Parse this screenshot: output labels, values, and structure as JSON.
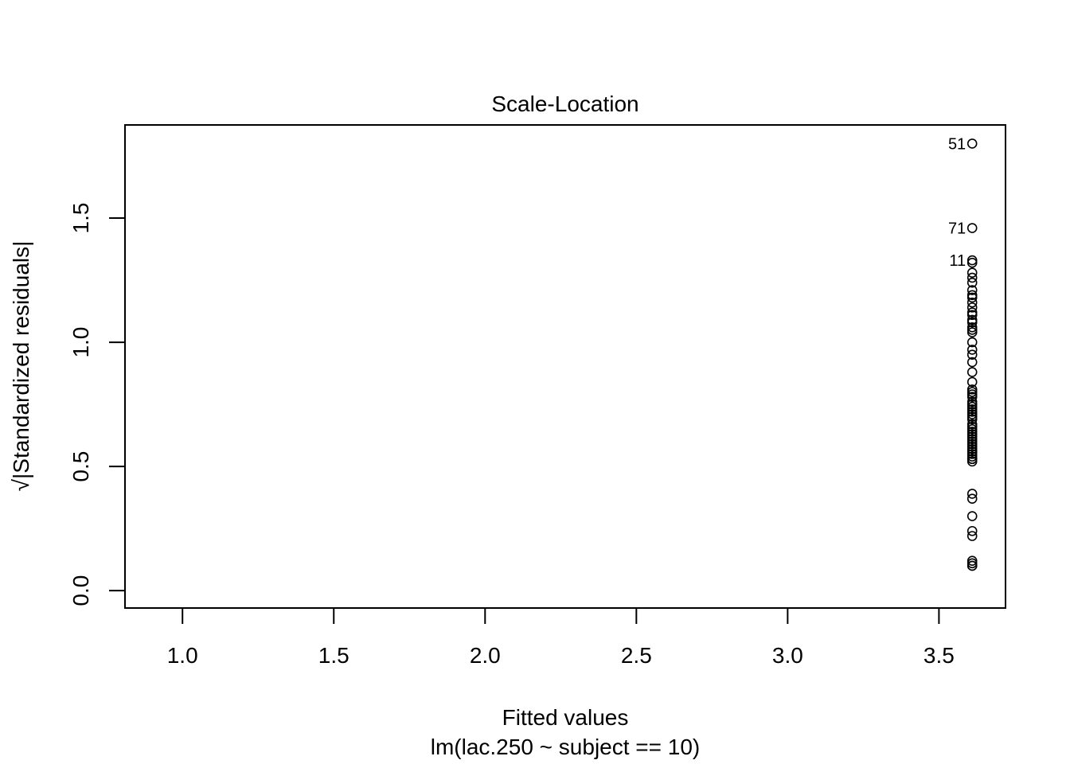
{
  "chart_data": {
    "type": "scatter",
    "title": "Scale-Location",
    "xlabel": "Fitted values",
    "subtitle": "lm(lac.250 ~ subject == 10)",
    "ylabel_sqrt_symbol": "√",
    "ylabel": "|Standardized residuals|",
    "xlim": [
      0.81,
      3.72
    ],
    "ylim": [
      -0.07,
      1.875
    ],
    "x_ticks": [
      1.0,
      1.5,
      2.0,
      2.5,
      3.0,
      3.5
    ],
    "x_tick_labels": [
      "1.0",
      "1.5",
      "2.0",
      "2.5",
      "3.0",
      "3.5"
    ],
    "y_ticks": [
      0.0,
      0.5,
      1.0,
      1.5
    ],
    "y_tick_labels": [
      "0.0",
      "0.5",
      "1.0",
      "1.5"
    ],
    "grid": false,
    "marker": "open-circle",
    "point_color": "#000000",
    "points": {
      "x": [
        3.61,
        3.61,
        3.61,
        3.61,
        3.61,
        3.61,
        3.61,
        3.61,
        3.61,
        3.61,
        3.61,
        3.61,
        3.61,
        3.61,
        3.61,
        3.61,
        3.61,
        3.61,
        3.61,
        3.61,
        3.61,
        3.61,
        3.61,
        3.61,
        3.61,
        3.61,
        3.61,
        3.61,
        3.61,
        3.61,
        3.61,
        3.61,
        3.61,
        3.61,
        3.61,
        3.61,
        3.61,
        3.61,
        3.61,
        3.61,
        3.61,
        3.61,
        3.61,
        3.61,
        3.61,
        3.61,
        3.61,
        3.61,
        3.61,
        3.61,
        3.61,
        3.61,
        3.61,
        3.61,
        3.61,
        3.61,
        3.61,
        3.61,
        3.61,
        3.61,
        3.61,
        3.61,
        3.61,
        3.61
      ],
      "y": [
        1.8,
        1.46,
        1.33,
        1.32,
        1.28,
        1.26,
        1.24,
        1.21,
        1.19,
        1.18,
        1.16,
        1.14,
        1.12,
        1.11,
        1.09,
        1.08,
        1.06,
        1.05,
        1.04,
        1.0,
        0.97,
        0.95,
        0.92,
        0.88,
        0.84,
        0.81,
        0.8,
        0.79,
        0.78,
        0.76,
        0.75,
        0.74,
        0.73,
        0.72,
        0.71,
        0.7,
        0.69,
        0.67,
        0.66,
        0.65,
        0.64,
        0.63,
        0.62,
        0.61,
        0.6,
        0.59,
        0.58,
        0.57,
        0.56,
        0.56,
        0.55,
        0.54,
        0.53,
        0.53,
        0.52,
        0.39,
        0.37,
        0.3,
        0.24,
        0.22,
        0.12,
        0.11,
        0.1,
        0.1
      ]
    },
    "annotations": [
      {
        "label": "51",
        "x": 3.61,
        "y": 1.8
      },
      {
        "label": "71",
        "x": 3.61,
        "y": 1.46
      },
      {
        "label": "11",
        "x": 3.61,
        "y": 1.33
      }
    ]
  }
}
